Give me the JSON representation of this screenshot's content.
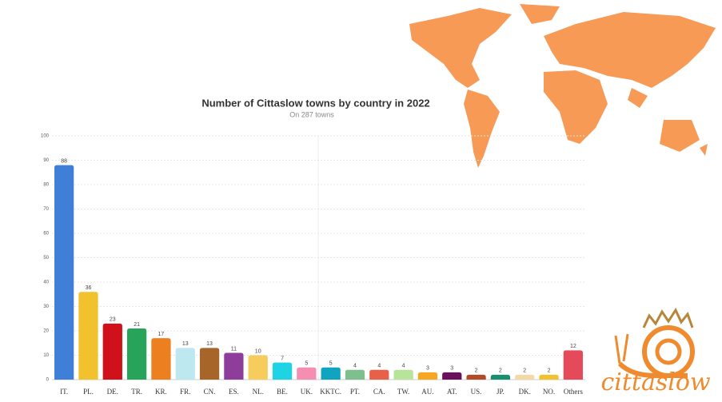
{
  "chart_data": {
    "type": "bar",
    "title": "Number of Cittaslow towns by country in 2022",
    "subtitle": "On 287 towns",
    "categories": [
      "IT.",
      "PL.",
      "DE.",
      "TR.",
      "KR.",
      "FR.",
      "CN.",
      "ES.",
      "NL.",
      "BE.",
      "UK.",
      "KKTC.",
      "PT.",
      "CA.",
      "TW.",
      "AU.",
      "AT.",
      "US.",
      "JP.",
      "DK.",
      "NO.",
      "Others"
    ],
    "values": [
      88,
      36,
      23,
      21,
      17,
      13,
      13,
      11,
      10,
      7,
      5,
      5,
      4,
      4,
      4,
      3,
      3,
      2,
      2,
      2,
      2,
      12
    ],
    "colors": [
      "#3f7fd8",
      "#f2c12e",
      "#d0101a",
      "#27a35a",
      "#ec8020",
      "#bde8f0",
      "#a8652a",
      "#8e3d9a",
      "#f6cd5c",
      "#1ed4e4",
      "#f48fb1",
      "#11a4c0",
      "#7fbf8e",
      "#e8604a",
      "#b7e39a",
      "#f5a623",
      "#6a0e5e",
      "#b34a2a",
      "#1a8f6f",
      "#f3d9a6",
      "#f2c12e",
      "#e44a5a"
    ],
    "ylim": [
      0,
      100
    ],
    "yticks": [
      0,
      10,
      20,
      30,
      40,
      50,
      60,
      70,
      80,
      90,
      100
    ],
    "grid": true
  },
  "logo": {
    "text": "cittaslow"
  }
}
